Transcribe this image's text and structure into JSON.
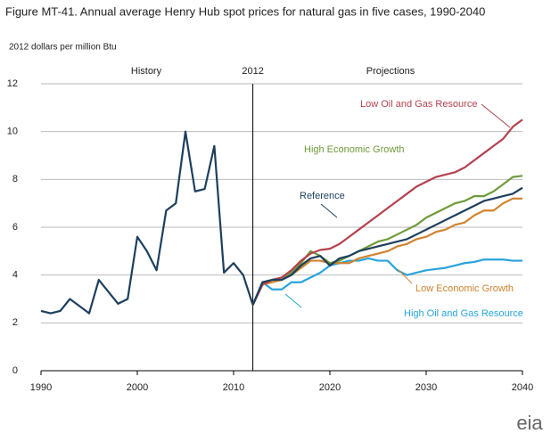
{
  "chart_data": {
    "type": "line",
    "title": "Figure MT-41. Annual average Henry Hub spot prices for natural gas in five cases, 1990-2040",
    "y_unit_label": "2012 dollars per million Btu",
    "annotations": [
      "History",
      "Projections"
    ],
    "vline": {
      "value": 2012,
      "label": "2012"
    },
    "x": [
      1990,
      1991,
      1992,
      1993,
      1994,
      1995,
      1996,
      1997,
      1998,
      1999,
      2000,
      2001,
      2002,
      2003,
      2004,
      2005,
      2006,
      2007,
      2008,
      2009,
      2010,
      2011,
      2012,
      2013,
      2014,
      2015,
      2016,
      2017,
      2018,
      2019,
      2020,
      2021,
      2022,
      2023,
      2024,
      2025,
      2026,
      2027,
      2028,
      2029,
      2030,
      2031,
      2032,
      2033,
      2034,
      2035,
      2036,
      2037,
      2038,
      2039,
      2040
    ],
    "series": [
      {
        "color": "#1d3f5e",
        "values": [
          2.5,
          2.4,
          2.5,
          3.0,
          2.7,
          2.4,
          3.8,
          3.3,
          2.8,
          3.0,
          5.6,
          5.0,
          4.2,
          6.7,
          7.0,
          10.0,
          7.5,
          7.6,
          9.4,
          4.1,
          4.5,
          4.0,
          2.75,
          null,
          null,
          null,
          null,
          null,
          null,
          null,
          null,
          null,
          null,
          null,
          null,
          null,
          null,
          null,
          null,
          null,
          null,
          null,
          null,
          null,
          null,
          null,
          null,
          null,
          null,
          null,
          null
        ]
      },
      {
        "name": "Low Oil and Gas Resource",
        "color": "#b5424e",
        "values": [
          null,
          null,
          null,
          null,
          null,
          null,
          null,
          null,
          null,
          null,
          null,
          null,
          null,
          null,
          null,
          null,
          null,
          null,
          null,
          null,
          null,
          null,
          2.75,
          3.6,
          3.8,
          3.9,
          4.2,
          4.6,
          4.9,
          5.05,
          5.1,
          5.3,
          5.6,
          5.9,
          6.2,
          6.5,
          6.8,
          7.1,
          7.4,
          7.7,
          7.9,
          8.1,
          8.2,
          8.3,
          8.5,
          8.8,
          9.1,
          9.4,
          9.7,
          10.2,
          10.5
        ]
      },
      {
        "name": "High Economic Growth",
        "color": "#6f9a3a",
        "values": [
          null,
          null,
          null,
          null,
          null,
          null,
          null,
          null,
          null,
          null,
          null,
          null,
          null,
          null,
          null,
          null,
          null,
          null,
          null,
          null,
          null,
          null,
          2.75,
          3.7,
          3.8,
          3.8,
          4.1,
          4.5,
          5.0,
          4.8,
          4.5,
          4.6,
          4.8,
          5.0,
          5.2,
          5.4,
          5.5,
          5.7,
          5.9,
          6.1,
          6.4,
          6.6,
          6.8,
          7.0,
          7.1,
          7.3,
          7.3,
          7.5,
          7.8,
          8.1,
          8.15
        ]
      },
      {
        "name": "Reference",
        "color": "#1d3f5e",
        "values": [
          null,
          null,
          null,
          null,
          null,
          null,
          null,
          null,
          null,
          null,
          null,
          null,
          null,
          null,
          null,
          null,
          null,
          null,
          null,
          null,
          null,
          null,
          2.75,
          3.7,
          3.8,
          3.8,
          4.0,
          4.4,
          4.7,
          4.8,
          4.4,
          4.7,
          4.8,
          5.0,
          5.1,
          5.2,
          5.3,
          5.4,
          5.5,
          5.7,
          5.9,
          6.1,
          6.3,
          6.5,
          6.7,
          6.9,
          7.1,
          7.2,
          7.3,
          7.4,
          7.65
        ]
      },
      {
        "name": "Low Economic Growth",
        "color": "#d1832f",
        "values": [
          null,
          null,
          null,
          null,
          null,
          null,
          null,
          null,
          null,
          null,
          null,
          null,
          null,
          null,
          null,
          null,
          null,
          null,
          null,
          null,
          null,
          null,
          2.75,
          3.6,
          3.7,
          3.8,
          4.0,
          4.3,
          4.6,
          4.6,
          4.5,
          4.5,
          4.5,
          4.7,
          4.8,
          4.9,
          5.0,
          5.2,
          5.3,
          5.5,
          5.6,
          5.8,
          5.9,
          6.1,
          6.2,
          6.5,
          6.7,
          6.7,
          7.0,
          7.2,
          7.2
        ]
      },
      {
        "name": "High Oil and Gas Resource",
        "color": "#27a4dc",
        "values": [
          null,
          null,
          null,
          null,
          null,
          null,
          null,
          null,
          null,
          null,
          null,
          null,
          null,
          null,
          null,
          null,
          null,
          null,
          null,
          null,
          null,
          null,
          2.75,
          3.7,
          3.4,
          3.4,
          3.7,
          3.7,
          3.9,
          4.1,
          4.4,
          4.5,
          4.6,
          4.6,
          4.7,
          4.6,
          4.6,
          4.2,
          4.0,
          4.1,
          4.2,
          4.25,
          4.3,
          4.4,
          4.5,
          4.55,
          4.65,
          4.65,
          4.65,
          4.6,
          4.6
        ]
      }
    ],
    "xlim": [
      1990,
      2040
    ],
    "xticks": [
      1990,
      2000,
      2010,
      2020,
      2030,
      2040
    ],
    "ylim": [
      0,
      12
    ],
    "yticks": [
      0,
      2,
      4,
      6,
      8,
      10,
      12
    ],
    "grid": true,
    "logo": "eia"
  }
}
